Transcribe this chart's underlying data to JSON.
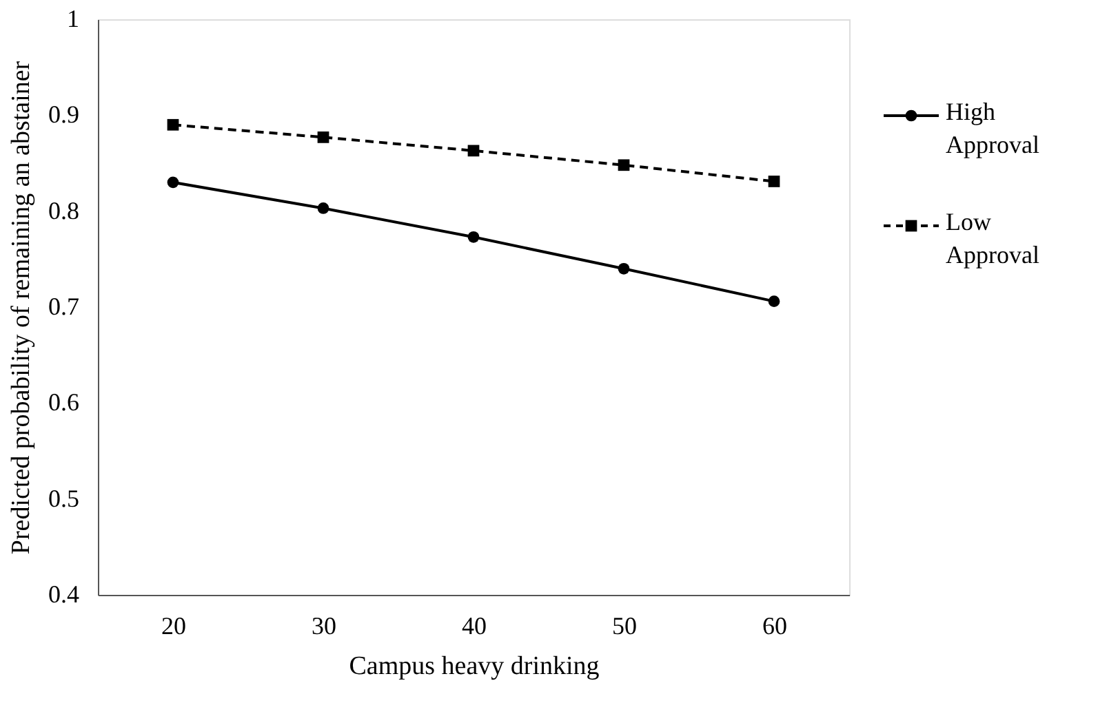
{
  "chart_data": {
    "type": "line",
    "xlabel": "Campus heavy drinking",
    "ylabel": "Predicted probability of remaining an abstainer",
    "categories": [
      "20",
      "30",
      "40",
      "50",
      "60"
    ],
    "series": [
      {
        "name": "High Approval",
        "color": "#000000",
        "values": [
          0.83,
          0.803,
          0.773,
          0.74,
          0.706
        ],
        "marker": "circle",
        "line_style": "solid"
      },
      {
        "name": "Low Approval",
        "color": "#000000",
        "values": [
          0.89,
          0.877,
          0.863,
          0.848,
          0.831
        ],
        "marker": "square",
        "line_style": "dashed"
      }
    ],
    "ylim": [
      0.4,
      1
    ],
    "yticks": [
      0.4,
      0.5,
      0.6,
      0.7,
      0.8,
      0.9,
      1
    ],
    "grid": false,
    "legend": "right"
  }
}
